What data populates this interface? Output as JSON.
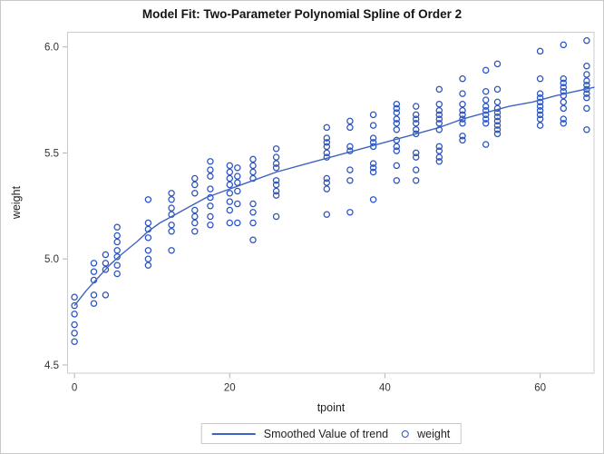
{
  "chart_data": {
    "type": "scatter",
    "title": "Model Fit: Two-Parameter Polynomial Spline of Order 2",
    "xlabel": "tpoint",
    "ylabel": "weight",
    "xlim": [
      -0.95,
      67.0
    ],
    "ylim": [
      4.459,
      6.0715
    ],
    "xticks": [
      {
        "v": 0,
        "label": "0"
      },
      {
        "v": 20,
        "label": "20"
      },
      {
        "v": 40,
        "label": "40"
      },
      {
        "v": 60,
        "label": "60"
      }
    ],
    "yticks": [
      {
        "v": 4.5,
        "label": "4.5"
      },
      {
        "v": 5.0,
        "label": "5.0"
      },
      {
        "v": 5.5,
        "label": "5.5"
      },
      {
        "v": 6.0,
        "label": "6.0"
      }
    ],
    "grid": false,
    "legend_position": "bottom-center",
    "legend": [
      {
        "label": "Smoothed Value of trend",
        "swatch": "line"
      },
      {
        "label": "weight",
        "swatch": "circle-marker"
      }
    ],
    "colors": {
      "marker": "#2a52be",
      "trend_line": "#3f63c2"
    },
    "scatter_series_name": "weight",
    "scatter_groups": [
      {
        "t": 0,
        "w": [
          4.82,
          4.78,
          4.74,
          4.69,
          4.65,
          4.61
        ]
      },
      {
        "t": 2.5,
        "w": [
          4.98,
          4.94,
          4.9,
          4.83,
          4.79
        ]
      },
      {
        "t": 4,
        "w": [
          5.02,
          4.98,
          4.95,
          4.83
        ]
      },
      {
        "t": 5.5,
        "w": [
          5.15,
          5.11,
          5.08,
          5.04,
          5.01,
          4.97,
          4.93
        ]
      },
      {
        "t": 9.5,
        "w": [
          5.28,
          5.17,
          5.14,
          5.1,
          5.04,
          5.0,
          4.97
        ]
      },
      {
        "t": 12.5,
        "w": [
          5.31,
          5.28,
          5.24,
          5.21,
          5.16,
          5.13,
          5.04
        ]
      },
      {
        "t": 15.5,
        "w": [
          5.38,
          5.35,
          5.31,
          5.23,
          5.2,
          5.17,
          5.13
        ]
      },
      {
        "t": 17.5,
        "w": [
          5.46,
          5.42,
          5.39,
          5.33,
          5.29,
          5.25,
          5.2,
          5.16
        ]
      },
      {
        "t": 20,
        "w": [
          5.44,
          5.41,
          5.38,
          5.35,
          5.31,
          5.27,
          5.23,
          5.17
        ]
      },
      {
        "t": 21,
        "w": [
          5.43,
          5.39,
          5.36,
          5.32,
          5.26,
          5.17
        ]
      },
      {
        "t": 23,
        "w": [
          5.47,
          5.44,
          5.41,
          5.38,
          5.26,
          5.22,
          5.17,
          5.09
        ]
      },
      {
        "t": 26,
        "w": [
          5.52,
          5.48,
          5.45,
          5.43,
          5.37,
          5.35,
          5.32,
          5.3,
          5.2
        ]
      },
      {
        "t": 32.5,
        "w": [
          5.62,
          5.57,
          5.55,
          5.53,
          5.5,
          5.48,
          5.38,
          5.36,
          5.33,
          5.21
        ]
      },
      {
        "t": 35.5,
        "w": [
          5.65,
          5.62,
          5.53,
          5.51,
          5.42,
          5.37,
          5.22
        ]
      },
      {
        "t": 38.5,
        "w": [
          5.68,
          5.63,
          5.57,
          5.55,
          5.53,
          5.45,
          5.43,
          5.41,
          5.28
        ]
      },
      {
        "t": 41.5,
        "w": [
          5.73,
          5.71,
          5.69,
          5.66,
          5.64,
          5.61,
          5.56,
          5.53,
          5.51,
          5.44,
          5.37
        ]
      },
      {
        "t": 44,
        "w": [
          5.72,
          5.68,
          5.66,
          5.64,
          5.61,
          5.59,
          5.5,
          5.48,
          5.42,
          5.37
        ]
      },
      {
        "t": 47,
        "w": [
          5.8,
          5.73,
          5.7,
          5.68,
          5.66,
          5.64,
          5.61,
          5.53,
          5.51,
          5.48,
          5.46
        ]
      },
      {
        "t": 50,
        "w": [
          5.85,
          5.78,
          5.73,
          5.7,
          5.68,
          5.66,
          5.64,
          5.58,
          5.56
        ]
      },
      {
        "t": 53,
        "w": [
          5.89,
          5.79,
          5.75,
          5.72,
          5.7,
          5.68,
          5.66,
          5.64,
          5.54
        ]
      },
      {
        "t": 54.5,
        "w": [
          5.92,
          5.8,
          5.74,
          5.71,
          5.69,
          5.67,
          5.65,
          5.63,
          5.61,
          5.59
        ]
      },
      {
        "t": 60,
        "w": [
          5.98,
          5.85,
          5.78,
          5.76,
          5.74,
          5.72,
          5.7,
          5.68,
          5.66,
          5.63
        ]
      },
      {
        "t": 63,
        "w": [
          6.01,
          5.85,
          5.83,
          5.81,
          5.79,
          5.77,
          5.74,
          5.71,
          5.66,
          5.64
        ]
      },
      {
        "t": 66,
        "w": [
          6.03,
          5.91,
          5.87,
          5.84,
          5.82,
          5.8,
          5.78,
          5.76,
          5.71,
          5.61
        ]
      }
    ],
    "trend_series_name": "Smoothed Value of trend",
    "trend_points": [
      [
        0,
        4.78
      ],
      [
        1.5,
        4.85
      ],
      [
        3,
        4.91
      ],
      [
        4.5,
        4.97
      ],
      [
        6,
        5.02
      ],
      [
        8,
        5.08
      ],
      [
        9.5,
        5.13
      ],
      [
        11,
        5.17
      ],
      [
        13,
        5.21
      ],
      [
        15,
        5.25
      ],
      [
        17,
        5.29
      ],
      [
        20,
        5.33
      ],
      [
        23,
        5.37
      ],
      [
        26,
        5.41
      ],
      [
        29,
        5.44
      ],
      [
        32,
        5.47
      ],
      [
        35,
        5.5
      ],
      [
        38,
        5.53
      ],
      [
        41,
        5.56
      ],
      [
        44,
        5.59
      ],
      [
        47,
        5.62
      ],
      [
        50,
        5.66
      ],
      [
        53,
        5.69
      ],
      [
        56,
        5.72
      ],
      [
        59,
        5.74
      ],
      [
        62,
        5.77
      ],
      [
        64.5,
        5.79
      ],
      [
        67,
        5.81
      ]
    ]
  }
}
